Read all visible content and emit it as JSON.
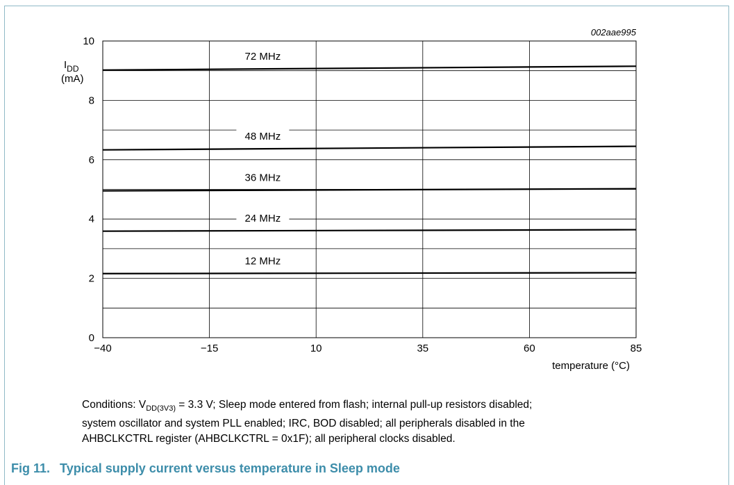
{
  "figure_code": "002aae995",
  "caption": {
    "number": "Fig 11.",
    "title": "Typical supply current versus temperature in Sleep mode"
  },
  "conditions": {
    "prefix": "Conditions: V",
    "sub": "DD(3V3)",
    "rest_line1": " = 3.3 V; Sleep mode entered from flash; internal pull-up resistors disabled;",
    "line2": "system oscillator and system PLL enabled; IRC, BOD disabled; all peripherals disabled in the",
    "line3": "AHBCLKCTRL register (AHBCLKCTRL = 0x1F); all peripheral clocks disabled."
  },
  "colors": {
    "frame": "#8fb9c6",
    "caption": "#3d8daa",
    "grid": "#000000",
    "series": "#000000"
  },
  "chart_data": {
    "type": "line",
    "xlabel": "temperature (°C)",
    "ylabel_main": "I",
    "ylabel_sub": "DD",
    "ylabel_unit": "(mA)",
    "xlim": [
      -40,
      85
    ],
    "ylim": [
      0,
      10
    ],
    "x_ticks": [
      -40,
      -15,
      10,
      35,
      60,
      85
    ],
    "x_tick_labels": [
      "−40",
      "−15",
      "10",
      "35",
      "60",
      "85"
    ],
    "y_ticks": [
      0,
      2,
      4,
      6,
      8,
      10
    ],
    "y_tick_labels": [
      "0",
      "2",
      "4",
      "6",
      "8",
      "10"
    ],
    "grid": true,
    "x": [
      -40,
      85
    ],
    "series": [
      {
        "name": "72 MHz",
        "values": [
          9.02,
          9.15
        ]
      },
      {
        "name": "48 MHz",
        "values": [
          6.33,
          6.45
        ]
      },
      {
        "name": "36 MHz",
        "values": [
          4.95,
          5.02
        ]
      },
      {
        "name": "24 MHz",
        "values": [
          3.59,
          3.64
        ]
      },
      {
        "name": "12 MHz",
        "values": [
          2.16,
          2.19
        ]
      }
    ]
  }
}
